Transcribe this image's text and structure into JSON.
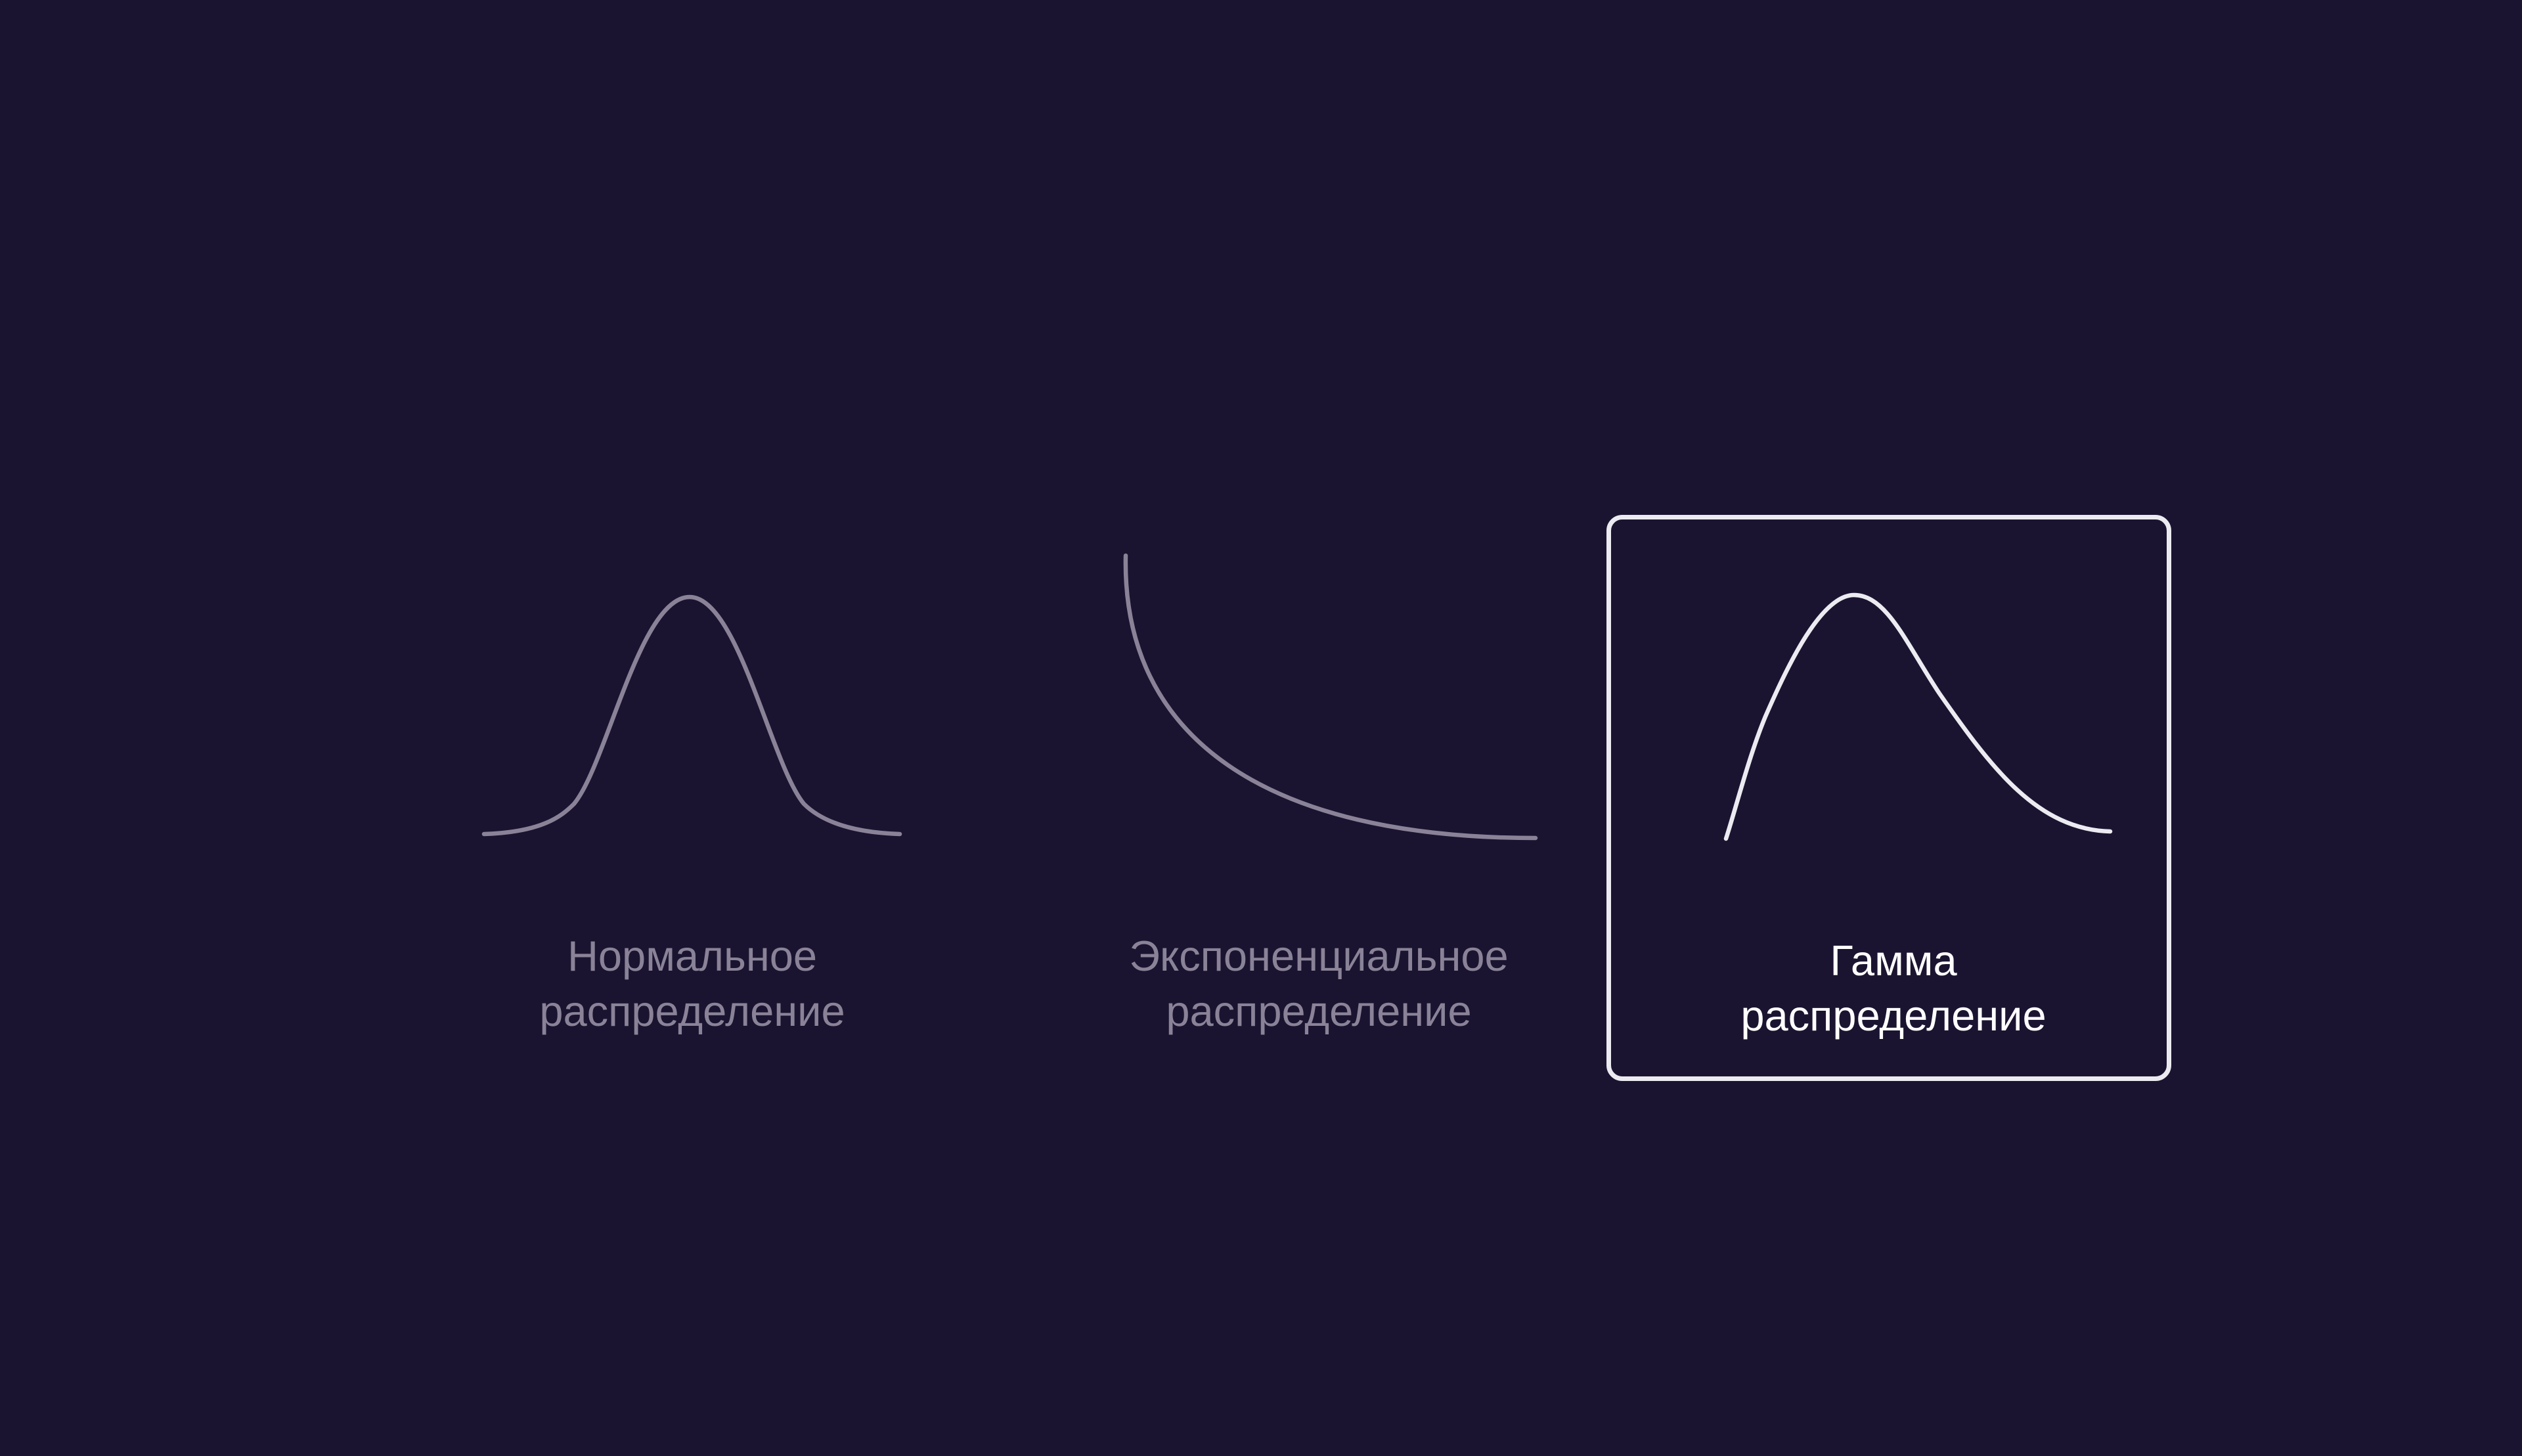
{
  "options": [
    {
      "id": "normal",
      "line1": "Нормальное",
      "line2": "распределение",
      "curve_icon": "bell-curve-icon",
      "selected": false
    },
    {
      "id": "exponential",
      "line1": "Экспоненциальное",
      "line2": "распределение",
      "curve_icon": "exponential-decay-curve-icon",
      "selected": false
    },
    {
      "id": "gamma",
      "line1": "Гамма",
      "line2": "распределение",
      "curve_icon": "gamma-curve-icon",
      "selected": true
    }
  ],
  "colors": {
    "background": "#1b1431",
    "inactive": "#8a8398",
    "active_text": "#ffffff",
    "active_line": "#ecebf1"
  }
}
